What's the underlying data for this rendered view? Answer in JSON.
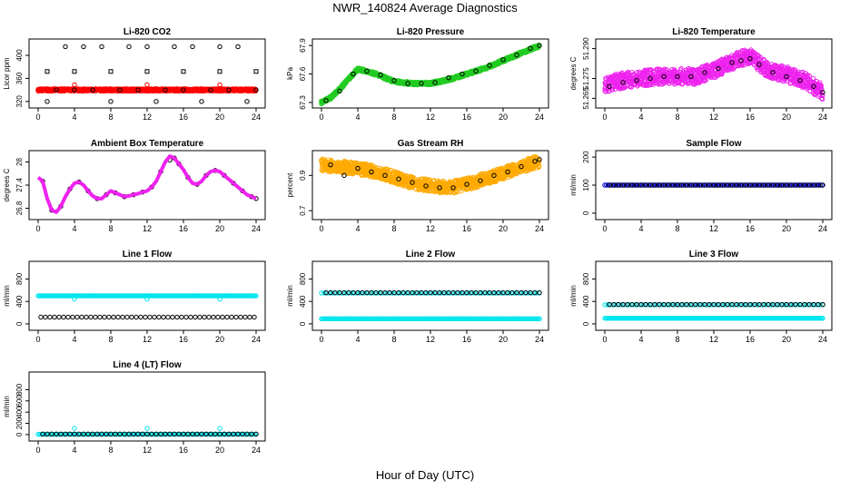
{
  "page": {
    "title": "NWR_140824  Average Diagnostics",
    "xlabel": "Hour of Day (UTC)"
  },
  "colors": {
    "red": "#ff0000",
    "green": "#22cc22",
    "magenta": "#ee22ee",
    "orange": "#ffaa00",
    "blue": "#0000cc",
    "cyan": "#00e5ee",
    "black": "#000000"
  },
  "chart_data": [
    {
      "id": "li820-co2",
      "type": "scatter",
      "title": "Li-820 CO2",
      "ylabel": "Licor ppm",
      "xlim": [
        0,
        24
      ],
      "ylim": [
        315,
        422
      ],
      "yticks": [
        320,
        360,
        400
      ],
      "xticks": [
        0,
        4,
        8,
        12,
        16,
        20,
        24
      ],
      "series": [
        {
          "style": "band",
          "color": "red",
          "x0": 0,
          "x1": 24,
          "center": 340,
          "spread": 2
        },
        {
          "style": "points",
          "color": "red",
          "x": [
            4,
            12,
            20
          ],
          "y": [
            349,
            349,
            349
          ]
        },
        {
          "style": "points",
          "color": "black",
          "x": [
            1,
            2,
            3,
            4,
            5,
            6,
            7,
            8,
            9,
            10,
            11,
            12,
            13,
            14,
            15,
            16,
            17,
            18,
            19,
            20,
            21,
            22,
            23,
            24
          ],
          "y": [
            320,
            340,
            415,
            340,
            415,
            340,
            415,
            320,
            340,
            415,
            340,
            415,
            320,
            340,
            415,
            340,
            415,
            320,
            340,
            415,
            340,
            415,
            320,
            340
          ]
        },
        {
          "style": "squares",
          "color": "black",
          "x": [
            1,
            4,
            8,
            12,
            16,
            20,
            24
          ],
          "y": [
            372,
            372,
            372,
            372,
            372,
            372,
            372
          ]
        }
      ]
    },
    {
      "id": "li820-pressure",
      "type": "scatter",
      "title": "Li-820 Pressure",
      "ylabel": "kPa",
      "xlim": [
        0,
        24
      ],
      "ylim": [
        67.28,
        67.93
      ],
      "yticks": [
        67.3,
        67.6,
        67.9
      ],
      "xticks": [
        0,
        4,
        8,
        12,
        16,
        20,
        24
      ],
      "series": [
        {
          "style": "band",
          "color": "green",
          "x": [
            0,
            1,
            2,
            3,
            4,
            5,
            6,
            7,
            8,
            10,
            12,
            14,
            16,
            18,
            20,
            22,
            24
          ],
          "y": [
            67.3,
            67.35,
            67.44,
            67.55,
            67.65,
            67.63,
            67.6,
            67.56,
            67.52,
            67.5,
            67.5,
            67.54,
            67.6,
            67.66,
            67.74,
            67.82,
            67.9
          ],
          "spread": 0.015
        },
        {
          "style": "points",
          "color": "black",
          "x": [
            0.5,
            2,
            3.5,
            5,
            6.5,
            8,
            9.5,
            11,
            12.5,
            14,
            15.5,
            17,
            18.5,
            20,
            21.5,
            23,
            24
          ],
          "y": [
            67.32,
            67.42,
            67.6,
            67.63,
            67.59,
            67.53,
            67.5,
            67.5,
            67.51,
            67.56,
            67.6,
            67.63,
            67.69,
            67.75,
            67.8,
            67.87,
            67.9
          ]
        }
      ]
    },
    {
      "id": "li820-temperature",
      "type": "scatter",
      "title": "Li-820 Temperature",
      "ylabel": "degrees C",
      "xlim": [
        0,
        24
      ],
      "ylim": [
        51.262,
        51.293
      ],
      "yticks": [
        51.265,
        51.275,
        51.29
      ],
      "ytick_labels": [
        "51.265",
        "51.275",
        "51.290"
      ],
      "xticks": [
        0,
        4,
        8,
        12,
        16,
        20,
        24
      ],
      "series": [
        {
          "style": "band",
          "color": "magenta",
          "x": [
            0,
            2,
            4,
            6,
            8,
            10,
            12,
            13,
            14,
            15,
            16,
            17,
            18,
            20,
            22,
            24
          ],
          "y": [
            51.272,
            51.274,
            51.275,
            51.276,
            51.276,
            51.276,
            51.279,
            51.281,
            51.283,
            51.285,
            51.286,
            51.283,
            51.279,
            51.277,
            51.274,
            51.268
          ],
          "spread": 0.004
        },
        {
          "style": "points",
          "color": "black",
          "x": [
            0.5,
            2,
            3.5,
            5,
            6.5,
            8,
            9.5,
            11,
            12.5,
            14,
            15,
            16,
            17,
            18.5,
            20,
            21.5,
            23,
            24
          ],
          "y": [
            51.271,
            51.273,
            51.274,
            51.275,
            51.276,
            51.276,
            51.276,
            51.278,
            51.28,
            51.283,
            51.284,
            51.285,
            51.282,
            51.278,
            51.276,
            51.274,
            51.271,
            51.268
          ]
        }
      ]
    },
    {
      "id": "ambient-box-temperature",
      "type": "scatter",
      "title": "Ambient Box Temperature",
      "ylabel": "degrees C",
      "xlim": [
        0,
        24
      ],
      "ylim": [
        26.6,
        28.2
      ],
      "yticks": [
        26.8,
        27.4,
        28.0
      ],
      "xticks": [
        0,
        4,
        8,
        12,
        16,
        20,
        24
      ],
      "series": [
        {
          "style": "line",
          "color": "magenta",
          "width": 4,
          "x": [
            0,
            0.5,
            1,
            1.5,
            2,
            2.5,
            3,
            3.5,
            4,
            4.5,
            5,
            5.5,
            6,
            6.5,
            7,
            7.5,
            8,
            8.5,
            9,
            9.5,
            10,
            10.5,
            11,
            11.5,
            12,
            12.5,
            13,
            13.5,
            14,
            14.5,
            15,
            15.5,
            16,
            16.5,
            17,
            17.5,
            18,
            18.5,
            19,
            19.5,
            20,
            20.5,
            21,
            21.5,
            22,
            22.5,
            23,
            23.5,
            24
          ],
          "y": [
            27.6,
            27.5,
            27.05,
            26.75,
            26.7,
            26.85,
            27.1,
            27.3,
            27.45,
            27.48,
            27.4,
            27.25,
            27.12,
            27.05,
            27.05,
            27.15,
            27.25,
            27.2,
            27.15,
            27.1,
            27.12,
            27.15,
            27.18,
            27.22,
            27.25,
            27.35,
            27.5,
            27.75,
            28.0,
            28.15,
            28.1,
            27.95,
            27.8,
            27.6,
            27.45,
            27.42,
            27.5,
            27.65,
            27.75,
            27.78,
            27.75,
            27.65,
            27.55,
            27.45,
            27.35,
            27.25,
            27.15,
            27.1,
            27.05
          ]
        },
        {
          "style": "points",
          "color": "black",
          "x": [
            0.5,
            1.5,
            2.5,
            3.5,
            4.5,
            5.5,
            6.5,
            7.5,
            8.5,
            9.5,
            10.5,
            11.5,
            12.5,
            13.5,
            14.5,
            15,
            15.5,
            16.5,
            17.5,
            18.5,
            19.5,
            20.5,
            21.5,
            22.5,
            23.5,
            24
          ],
          "y": [
            27.5,
            26.75,
            26.85,
            27.3,
            27.48,
            27.25,
            27.05,
            27.15,
            27.2,
            27.1,
            27.15,
            27.22,
            27.35,
            27.75,
            28.05,
            28.1,
            27.95,
            27.6,
            27.42,
            27.65,
            27.78,
            27.65,
            27.45,
            27.25,
            27.1,
            27.05
          ]
        }
      ]
    },
    {
      "id": "gas-stream-rh",
      "type": "scatter",
      "title": "Gas Stream RH",
      "ylabel": "percent",
      "xlim": [
        0,
        24
      ],
      "ylim": [
        0.67,
        1.02
      ],
      "yticks": [
        0.7,
        0.9
      ],
      "xticks": [
        0,
        4,
        8,
        12,
        16,
        20,
        24
      ],
      "series": [
        {
          "style": "band",
          "color": "orange",
          "x": [
            0,
            2,
            4,
            6,
            8,
            10,
            12,
            14,
            16,
            18,
            20,
            22,
            24
          ],
          "y": [
            0.96,
            0.95,
            0.94,
            0.92,
            0.89,
            0.86,
            0.84,
            0.83,
            0.85,
            0.88,
            0.91,
            0.95,
            0.98
          ],
          "spread": 0.035
        },
        {
          "style": "points",
          "color": "black",
          "x": [
            1,
            2.5,
            4,
            5.5,
            7,
            8.5,
            10,
            11.5,
            13,
            14.5,
            16,
            17.5,
            19,
            20.5,
            22,
            23.5,
            24
          ],
          "y": [
            0.96,
            0.9,
            0.94,
            0.92,
            0.9,
            0.88,
            0.86,
            0.84,
            0.83,
            0.83,
            0.85,
            0.87,
            0.9,
            0.92,
            0.95,
            0.98,
            0.99
          ]
        }
      ]
    },
    {
      "id": "sample-flow",
      "type": "scatter",
      "title": "Sample Flow",
      "ylabel": "ml/min",
      "xlim": [
        0,
        24
      ],
      "ylim": [
        -10,
        210
      ],
      "yticks": [
        0,
        100,
        200
      ],
      "xticks": [
        0,
        4,
        8,
        12,
        16,
        20,
        24
      ],
      "series": [
        {
          "style": "flat",
          "color": "blue",
          "y": 100,
          "x0": 0,
          "x1": 24,
          "step": 0.18
        },
        {
          "style": "flat",
          "color": "black",
          "y": 100,
          "x0": 0.5,
          "x1": 24,
          "step": 0.5
        }
      ]
    },
    {
      "id": "line1-flow",
      "type": "scatter",
      "title": "Line 1 Flow",
      "ylabel": "ml/min",
      "xlim": [
        0,
        24
      ],
      "ylim": [
        -50,
        1050
      ],
      "yticks": [
        0,
        400,
        800
      ],
      "xticks": [
        0,
        4,
        8,
        12,
        16,
        20,
        24
      ],
      "series": [
        {
          "style": "flat",
          "color": "cyan",
          "y": 500,
          "x0": 0,
          "x1": 24,
          "step": 0.12
        },
        {
          "style": "points",
          "color": "cyan",
          "x": [
            4,
            12,
            20
          ],
          "y": [
            440,
            440,
            440
          ]
        },
        {
          "style": "flat",
          "color": "black",
          "y": 120,
          "x0": 0.3,
          "x1": 24,
          "step": 0.5
        }
      ]
    },
    {
      "id": "line2-flow",
      "type": "scatter",
      "title": "Line 2 Flow",
      "ylabel": "ml/min",
      "xlim": [
        0,
        24
      ],
      "ylim": [
        -50,
        1050
      ],
      "yticks": [
        0,
        400,
        800
      ],
      "xticks": [
        0,
        4,
        8,
        12,
        16,
        20,
        24
      ],
      "series": [
        {
          "style": "flat",
          "color": "cyan",
          "y": 90,
          "x0": 0,
          "x1": 24,
          "step": 0.12
        },
        {
          "style": "flat",
          "color": "cyan",
          "y": 550,
          "x0": 0,
          "x1": 24,
          "step": 0.3
        },
        {
          "style": "flat",
          "color": "black",
          "y": 555,
          "x0": 0.5,
          "x1": 24,
          "step": 0.5
        }
      ]
    },
    {
      "id": "line3-flow",
      "type": "scatter",
      "title": "Line 3 Flow",
      "ylabel": "ml/min",
      "xlim": [
        0,
        24
      ],
      "ylim": [
        -50,
        1050
      ],
      "yticks": [
        0,
        400,
        800
      ],
      "xticks": [
        0,
        4,
        8,
        12,
        16,
        20,
        24
      ],
      "series": [
        {
          "style": "flat",
          "color": "cyan",
          "y": 100,
          "x0": 0,
          "x1": 24,
          "step": 0.12
        },
        {
          "style": "flat",
          "color": "cyan",
          "y": 340,
          "x0": 0,
          "x1": 24,
          "step": 0.3
        },
        {
          "style": "flat",
          "color": "black",
          "y": 345,
          "x0": 0.5,
          "x1": 24,
          "step": 0.5
        }
      ]
    },
    {
      "id": "line4-flow",
      "type": "scatter",
      "title": "Line 4 (LT) Flow",
      "ylabel": "ml/min",
      "xlim": [
        0,
        24
      ],
      "ylim": [
        -50,
        1050
      ],
      "yticks": [
        0,
        200,
        400,
        600,
        800
      ],
      "xticks": [
        0,
        4,
        8,
        12,
        16,
        20,
        24
      ],
      "series": [
        {
          "style": "flat",
          "color": "cyan",
          "y": 5,
          "x0": 0,
          "x1": 24,
          "step": 0.15
        },
        {
          "style": "points",
          "color": "cyan",
          "x": [
            4,
            12,
            20
          ],
          "y": [
            110,
            110,
            110
          ]
        },
        {
          "style": "flat",
          "color": "black",
          "y": 10,
          "x0": 0.5,
          "x1": 24,
          "step": 0.5
        }
      ]
    }
  ]
}
